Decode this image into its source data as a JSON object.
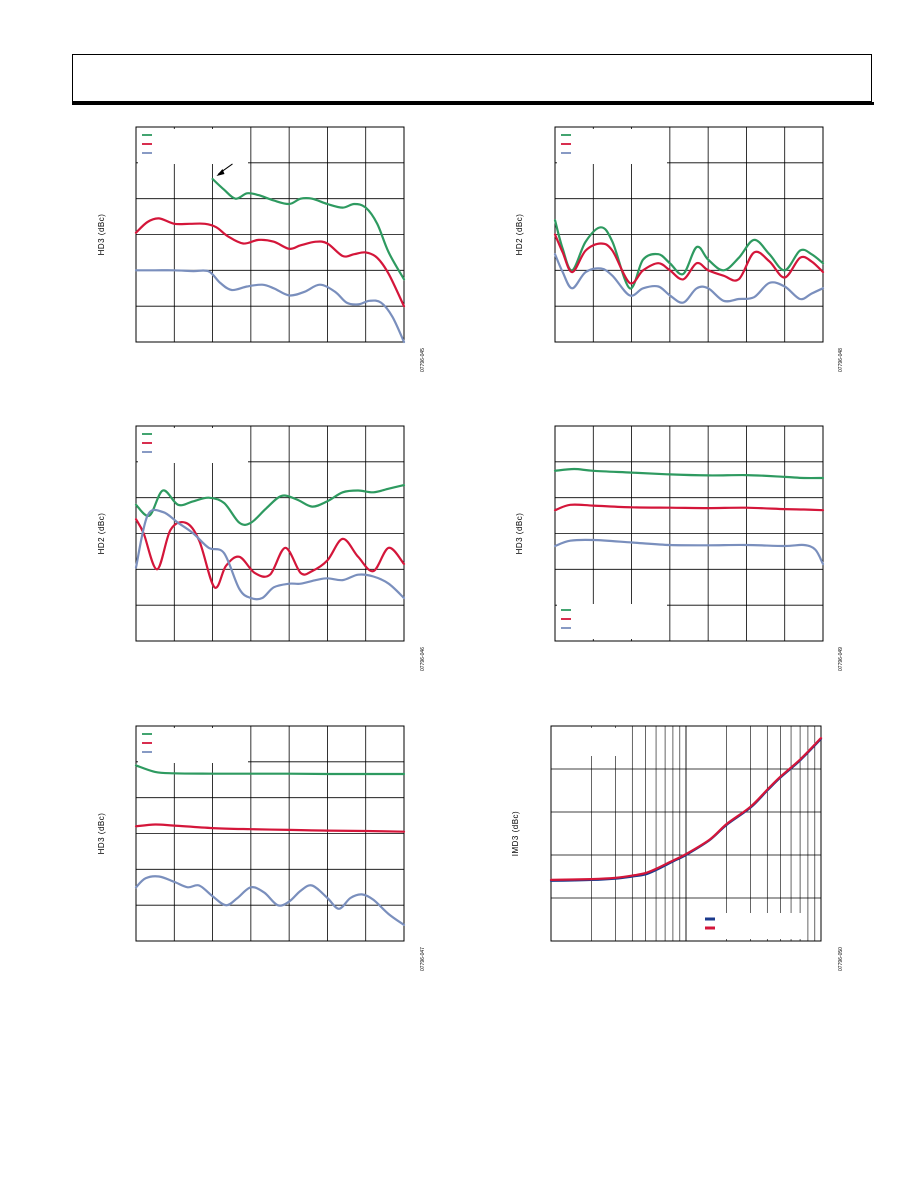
{
  "header": {},
  "colors": {
    "blue": "#7a8fbd",
    "red": "#d4163a",
    "green": "#2e9a60",
    "navy": "#1b3a8c"
  },
  "chart_data": [
    {
      "id": "c1",
      "type": "line",
      "ylabel": "HD3 (dBc)",
      "fig_id": "07796-045",
      "xdiv": 7,
      "ydiv": 6,
      "xlim": [
        0,
        7
      ],
      "ylim": [
        0,
        6
      ],
      "legend": "top-left",
      "arrow": true,
      "series": [
        {
          "color": "green",
          "x": [
            2.0,
            2.3,
            2.6,
            2.9,
            3.2,
            3.6,
            4.0,
            4.3,
            4.6,
            5.0,
            5.4,
            5.7,
            6.0,
            6.3,
            6.6,
            7.0
          ],
          "y": [
            4.55,
            4.25,
            4.0,
            4.15,
            4.1,
            3.95,
            3.85,
            4.0,
            4.0,
            3.85,
            3.75,
            3.85,
            3.75,
            3.3,
            2.5,
            1.75
          ]
        },
        {
          "color": "red",
          "x": [
            0.0,
            0.3,
            0.6,
            1.0,
            1.4,
            1.8,
            2.1,
            2.4,
            2.8,
            3.2,
            3.6,
            4.0,
            4.3,
            4.7,
            5.0,
            5.4,
            5.7,
            6.0,
            6.3,
            6.6,
            7.0
          ],
          "y": [
            3.05,
            3.35,
            3.45,
            3.3,
            3.3,
            3.3,
            3.2,
            2.95,
            2.75,
            2.85,
            2.8,
            2.6,
            2.7,
            2.8,
            2.75,
            2.4,
            2.45,
            2.5,
            2.35,
            1.9,
            1.0
          ]
        },
        {
          "color": "blue",
          "x": [
            0.0,
            0.5,
            1.0,
            1.5,
            1.9,
            2.2,
            2.5,
            2.9,
            3.3,
            3.6,
            4.0,
            4.4,
            4.8,
            5.2,
            5.5,
            5.8,
            6.1,
            6.4,
            6.7,
            7.0
          ],
          "y": [
            2.0,
            2.0,
            2.0,
            1.98,
            1.97,
            1.65,
            1.45,
            1.55,
            1.6,
            1.5,
            1.3,
            1.4,
            1.6,
            1.4,
            1.1,
            1.05,
            1.15,
            1.1,
            0.7,
            0.0
          ]
        }
      ]
    },
    {
      "id": "c2",
      "type": "line",
      "ylabel": "HD2 (dBc)",
      "fig_id": "07796-048",
      "xdiv": 7,
      "ydiv": 6,
      "xlim": [
        0,
        7
      ],
      "ylim": [
        0,
        6
      ],
      "legend": "top-left",
      "arrow": false,
      "series": [
        {
          "color": "green",
          "x": [
            0.0,
            0.2,
            0.45,
            0.8,
            1.2,
            1.5,
            1.95,
            2.3,
            2.7,
            3.0,
            3.35,
            3.7,
            4.0,
            4.4,
            4.8,
            5.2,
            5.6,
            6.0,
            6.4,
            6.7,
            7.0
          ],
          "y": [
            3.4,
            2.6,
            2.0,
            2.8,
            3.2,
            2.8,
            1.5,
            2.3,
            2.45,
            2.2,
            1.9,
            2.65,
            2.3,
            2.0,
            2.35,
            2.85,
            2.45,
            2.0,
            2.55,
            2.45,
            2.2
          ]
        },
        {
          "color": "red",
          "x": [
            0.0,
            0.2,
            0.45,
            0.8,
            1.2,
            1.5,
            1.95,
            2.3,
            2.7,
            3.0,
            3.35,
            3.7,
            4.0,
            4.4,
            4.8,
            5.2,
            5.6,
            6.0,
            6.4,
            6.7,
            7.0
          ],
          "y": [
            3.0,
            2.5,
            1.95,
            2.55,
            2.75,
            2.55,
            1.65,
            2.0,
            2.2,
            2.0,
            1.75,
            2.2,
            2.0,
            1.85,
            1.75,
            2.5,
            2.25,
            1.8,
            2.35,
            2.25,
            1.95
          ]
        },
        {
          "color": "blue",
          "x": [
            0.0,
            0.2,
            0.45,
            0.8,
            1.2,
            1.5,
            1.95,
            2.3,
            2.7,
            3.0,
            3.35,
            3.7,
            4.0,
            4.4,
            4.8,
            5.2,
            5.6,
            6.0,
            6.4,
            6.7,
            7.0
          ],
          "y": [
            2.45,
            1.95,
            1.5,
            1.95,
            2.05,
            1.85,
            1.3,
            1.5,
            1.55,
            1.3,
            1.1,
            1.5,
            1.5,
            1.15,
            1.2,
            1.25,
            1.65,
            1.55,
            1.2,
            1.35,
            1.5
          ]
        }
      ]
    },
    {
      "id": "c3",
      "type": "line",
      "ylabel": "HD2 (dBc)",
      "fig_id": "07796-046",
      "xdiv": 7,
      "ydiv": 6,
      "xlim": [
        0,
        7
      ],
      "ylim": [
        0,
        6
      ],
      "legend": "top-left",
      "arrow": false,
      "series": [
        {
          "color": "green",
          "x": [
            0.0,
            0.35,
            0.7,
            1.1,
            1.5,
            1.9,
            2.3,
            2.7,
            3.0,
            3.4,
            3.8,
            4.2,
            4.6,
            5.0,
            5.4,
            5.8,
            6.2,
            6.6,
            7.0
          ],
          "y": [
            3.8,
            3.5,
            4.2,
            3.8,
            3.9,
            4.0,
            3.85,
            3.3,
            3.3,
            3.7,
            4.05,
            3.95,
            3.75,
            3.9,
            4.15,
            4.2,
            4.15,
            4.25,
            4.35
          ]
        },
        {
          "color": "red",
          "x": [
            0.0,
            0.2,
            0.55,
            0.9,
            1.3,
            1.65,
            2.05,
            2.35,
            2.7,
            3.1,
            3.5,
            3.9,
            4.3,
            4.6,
            5.0,
            5.4,
            5.8,
            6.2,
            6.6,
            7.0
          ],
          "y": [
            3.4,
            3.0,
            2.0,
            3.1,
            3.3,
            2.8,
            1.5,
            2.1,
            2.35,
            1.9,
            1.85,
            2.6,
            1.9,
            1.95,
            2.25,
            2.85,
            2.35,
            1.95,
            2.6,
            2.15
          ]
        },
        {
          "color": "blue",
          "x": [
            0.0,
            0.3,
            0.7,
            1.1,
            1.5,
            1.9,
            2.3,
            2.7,
            3.0,
            3.3,
            3.6,
            4.0,
            4.3,
            4.7,
            5.0,
            5.4,
            5.8,
            6.2,
            6.6,
            7.0
          ],
          "y": [
            2.05,
            3.5,
            3.6,
            3.3,
            3.0,
            2.6,
            2.45,
            1.45,
            1.2,
            1.2,
            1.5,
            1.6,
            1.6,
            1.7,
            1.75,
            1.7,
            1.85,
            1.8,
            1.6,
            1.2
          ]
        }
      ]
    },
    {
      "id": "c4",
      "type": "line",
      "ylabel": "HD3 (dBc)",
      "fig_id": "07796-049",
      "xdiv": 7,
      "ydiv": 6,
      "xlim": [
        0,
        7
      ],
      "ylim": [
        0,
        6
      ],
      "legend": "bottom-left",
      "arrow": false,
      "series": [
        {
          "color": "green",
          "x": [
            0.0,
            0.5,
            1.0,
            2.0,
            3.0,
            4.0,
            5.0,
            6.0,
            6.5,
            7.0
          ],
          "y": [
            4.75,
            4.8,
            4.75,
            4.7,
            4.65,
            4.62,
            4.63,
            4.58,
            4.55,
            4.55
          ]
        },
        {
          "color": "red",
          "x": [
            0.0,
            0.4,
            1.0,
            2.0,
            3.0,
            4.0,
            5.0,
            6.0,
            6.5,
            7.0
          ],
          "y": [
            3.65,
            3.8,
            3.78,
            3.73,
            3.72,
            3.71,
            3.72,
            3.68,
            3.67,
            3.65
          ]
        },
        {
          "color": "blue",
          "x": [
            0.0,
            0.4,
            1.0,
            2.0,
            3.0,
            4.0,
            5.0,
            6.0,
            6.5,
            6.8,
            7.0
          ],
          "y": [
            2.65,
            2.8,
            2.82,
            2.75,
            2.68,
            2.67,
            2.68,
            2.65,
            2.68,
            2.55,
            2.15
          ]
        }
      ]
    },
    {
      "id": "c5",
      "type": "line",
      "ylabel": "HD3 (dBc)",
      "fig_id": "07796-047",
      "xdiv": 7,
      "ydiv": 6,
      "xlim": [
        0,
        7
      ],
      "ylim": [
        0,
        6
      ],
      "legend": "top-left",
      "arrow": false,
      "series": [
        {
          "color": "green",
          "x": [
            0.0,
            0.5,
            1.0,
            2.0,
            3.0,
            4.0,
            5.0,
            6.0,
            7.0
          ],
          "y": [
            4.9,
            4.72,
            4.68,
            4.67,
            4.67,
            4.67,
            4.66,
            4.66,
            4.66
          ]
        },
        {
          "color": "red",
          "x": [
            0.0,
            0.5,
            1.0,
            2.0,
            3.0,
            4.0,
            5.0,
            6.0,
            7.0
          ],
          "y": [
            3.2,
            3.25,
            3.22,
            3.15,
            3.12,
            3.1,
            3.08,
            3.07,
            3.05
          ]
        },
        {
          "color": "blue",
          "x": [
            0.0,
            0.25,
            0.6,
            1.0,
            1.35,
            1.65,
            2.0,
            2.35,
            2.65,
            3.0,
            3.35,
            3.7,
            4.0,
            4.3,
            4.6,
            5.0,
            5.3,
            5.6,
            5.9,
            6.2,
            6.6,
            7.0
          ],
          "y": [
            1.5,
            1.75,
            1.8,
            1.65,
            1.5,
            1.55,
            1.25,
            1.0,
            1.2,
            1.5,
            1.35,
            1.0,
            1.1,
            1.4,
            1.55,
            1.2,
            0.9,
            1.2,
            1.3,
            1.15,
            0.75,
            0.45
          ]
        }
      ]
    },
    {
      "id": "c6",
      "type": "line",
      "ylabel": "IMD3 (dBc)",
      "fig_id": "07796-050",
      "xscale": "log",
      "ydiv": 5,
      "xlim": [
        0.1,
        10
      ],
      "ylim": [
        0,
        5
      ],
      "legend": "bottom-right",
      "arrow": false,
      "series": [
        {
          "color": "navy",
          "x": [
            0.1,
            0.2,
            0.3,
            0.4,
            0.5,
            0.6,
            0.8,
            1.0,
            1.5,
            2.0,
            3.0,
            4.0,
            5.0,
            7.0,
            10.0
          ],
          "y": [
            1.4,
            1.42,
            1.45,
            1.5,
            1.55,
            1.65,
            1.85,
            2.0,
            2.35,
            2.7,
            3.1,
            3.5,
            3.8,
            4.2,
            4.7
          ]
        },
        {
          "color": "red",
          "x": [
            0.1,
            0.2,
            0.3,
            0.4,
            0.5,
            0.6,
            0.8,
            1.0,
            1.5,
            2.0,
            3.0,
            4.0,
            5.0,
            7.0,
            10.0
          ],
          "y": [
            1.42,
            1.44,
            1.47,
            1.52,
            1.58,
            1.68,
            1.87,
            2.02,
            2.36,
            2.72,
            3.12,
            3.52,
            3.82,
            4.22,
            4.72
          ]
        }
      ]
    }
  ]
}
